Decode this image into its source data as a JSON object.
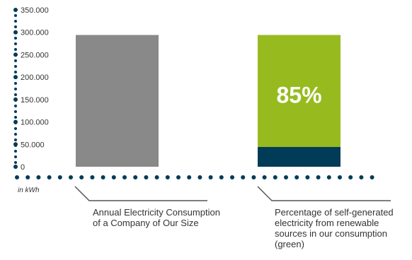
{
  "chart_data": {
    "type": "bar",
    "unit": "in kWh",
    "y_ticks": [
      "350.000",
      "300.000",
      "250.000",
      "200.000",
      "150.000",
      "100.000",
      "50.000",
      "0"
    ],
    "ylim": [
      0,
      350000
    ],
    "categories": [
      "Annual Electricity Consumption of a Company of Our Size",
      "Percentage of self-generated electricity from renewable sources in our consumption (green)"
    ],
    "bars": [
      {
        "value": 294000
      },
      {
        "value": 294000,
        "green_share": 0.85,
        "share_label": "85%"
      }
    ],
    "colors": {
      "gray": "#898989",
      "green": "#97bb1e",
      "navy": "#003b57",
      "axis": "#003b57"
    }
  },
  "labels": {
    "cat1_line1": "Annual Electricity Consumption",
    "cat1_line2": "of a Company of Our Size",
    "cat2_line1": "Percentage of self-generated",
    "cat2_line2": "electricity from renewable",
    "cat2_line3": "sources in our consumption",
    "cat2_line4": "(green)"
  }
}
